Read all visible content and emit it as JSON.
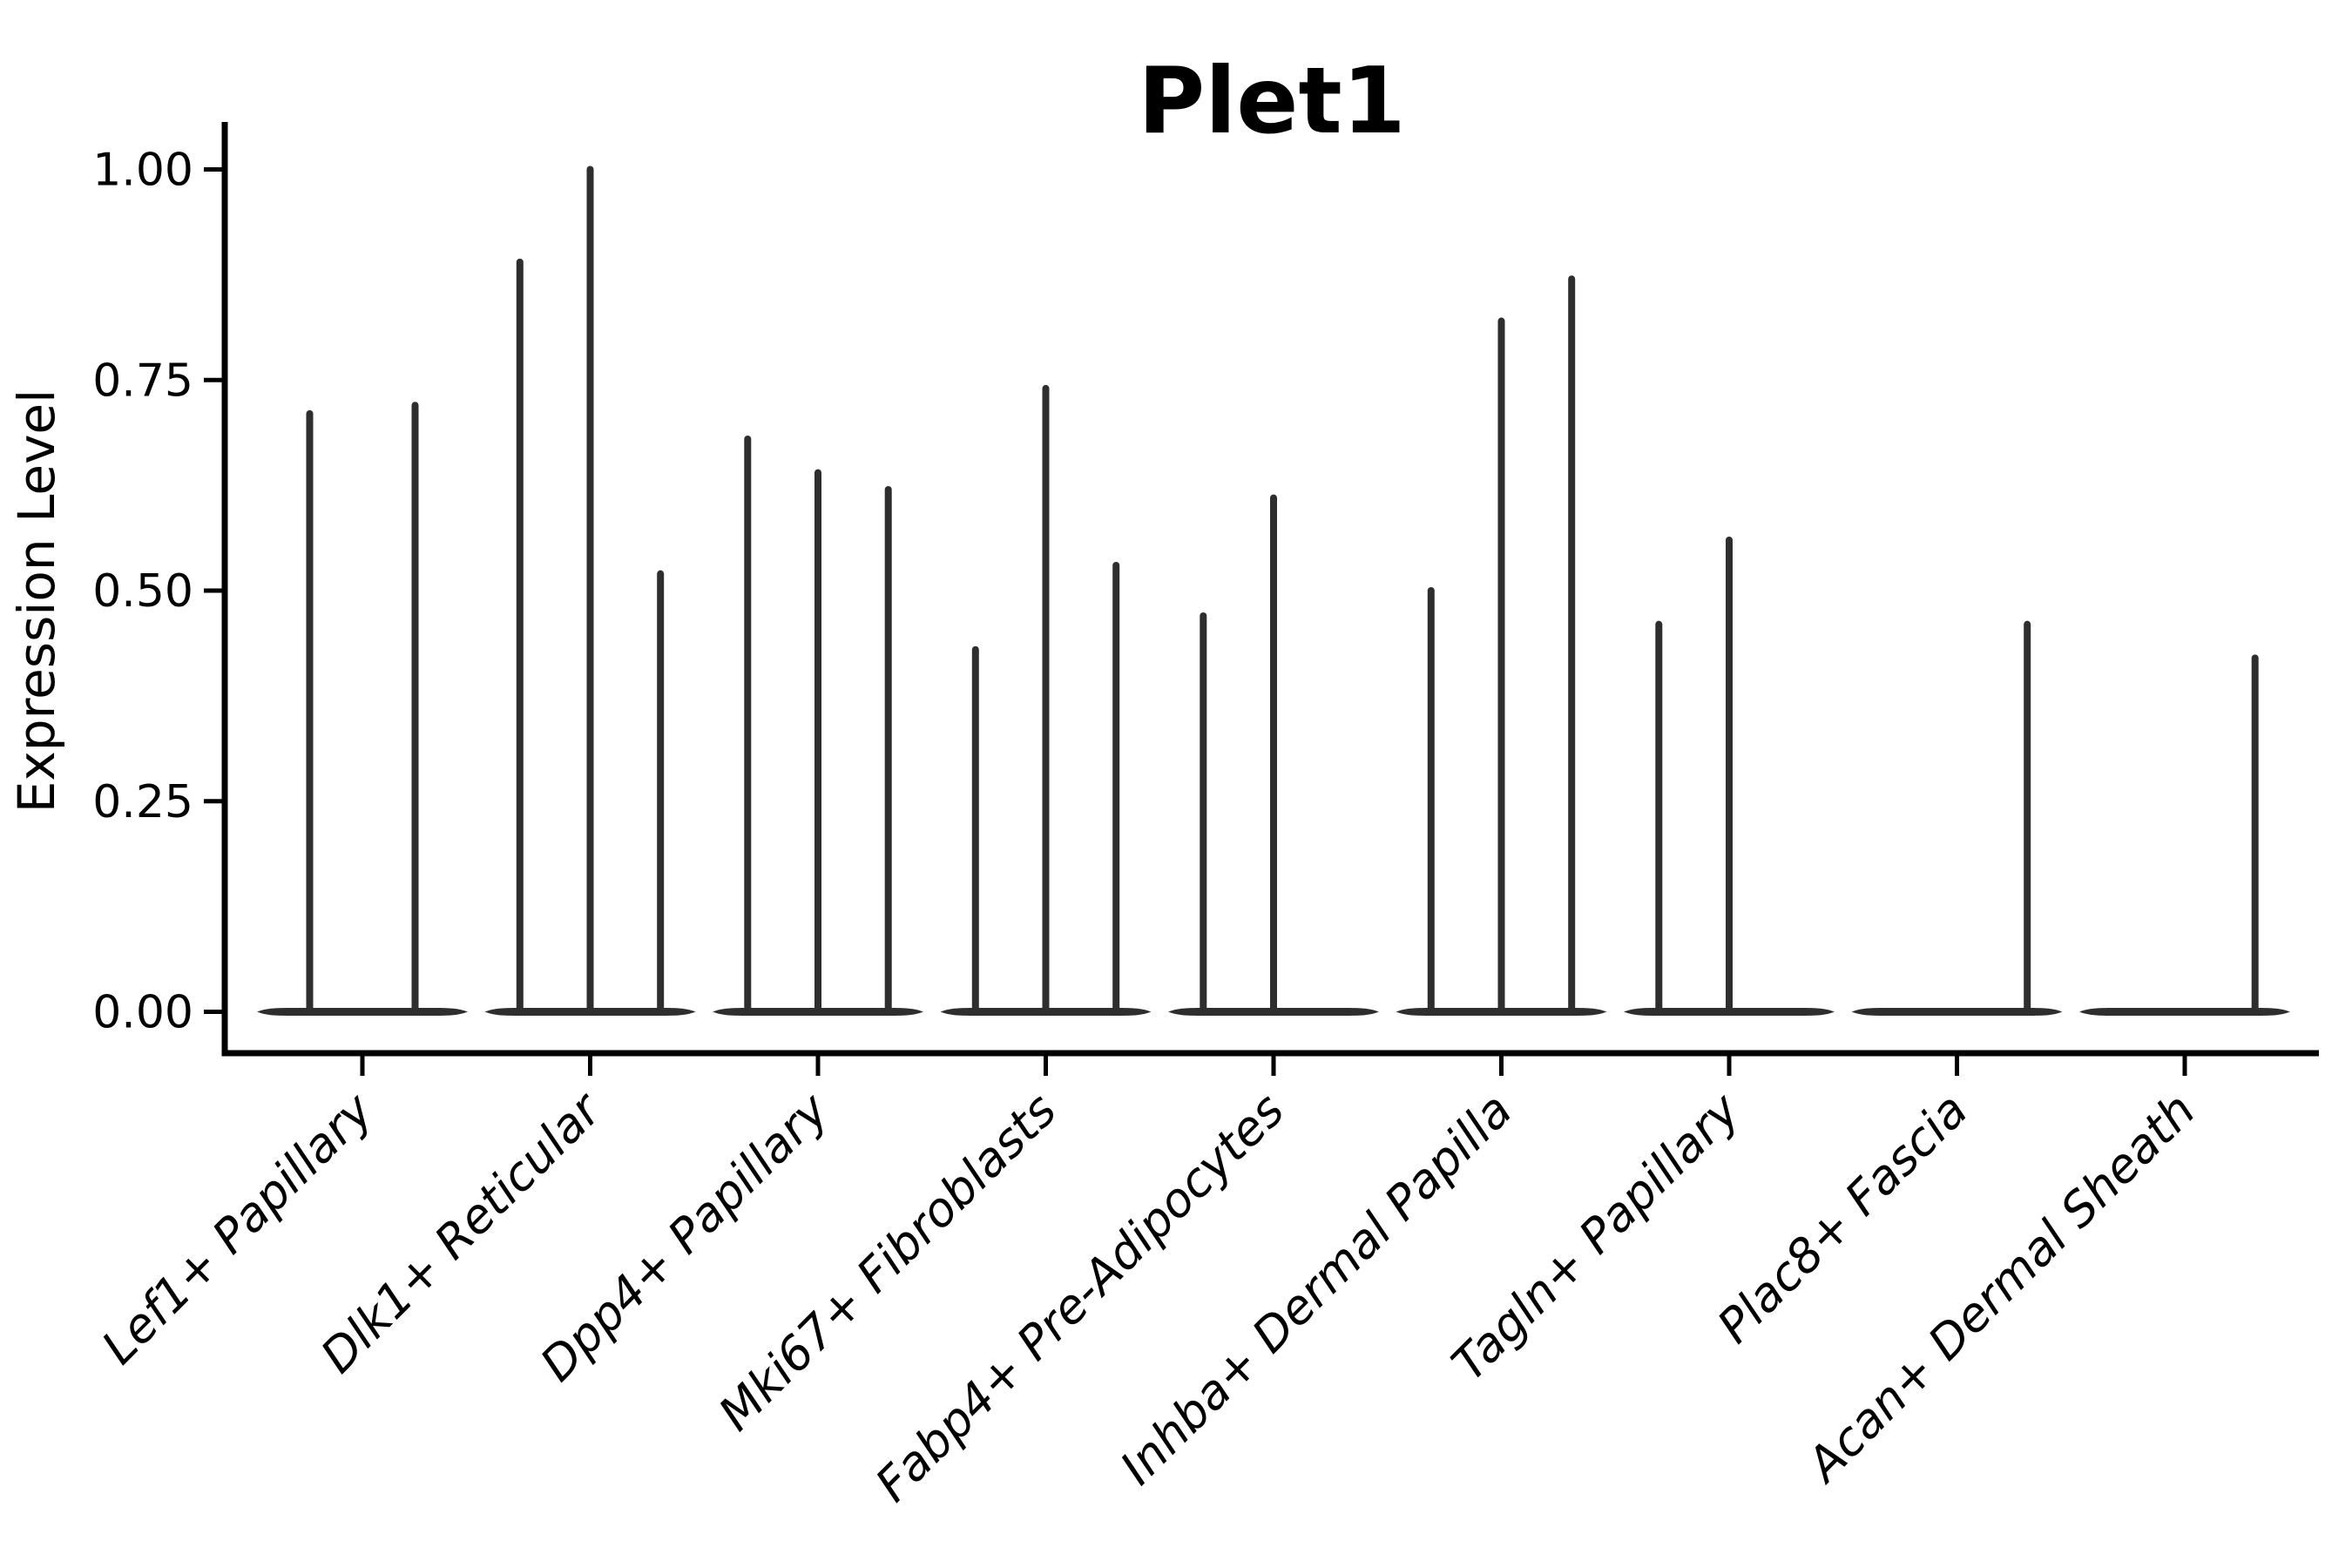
{
  "chart_data": {
    "type": "violin",
    "title": "Plet1",
    "ylabel": "Expression Level",
    "xlabel": "",
    "ylim": [
      0.0,
      1.05
    ],
    "ytick_values": [
      0.0,
      0.25,
      0.5,
      0.75,
      1.0
    ],
    "ytick_labels": [
      "0.00",
      "0.25",
      "0.50",
      "0.75",
      "1.00"
    ],
    "categories": [
      "Lef1+ Papillary",
      "Dlk1+ Reticular",
      "Dpp4+ Papillary",
      "Mki67+ Fibroblasts",
      "Fabp4+ Pre-Adipocytes",
      "Inhba+ Dermal Papilla",
      "Tagln+ Papillary",
      "Plac8+ Fascia",
      "Acan+ Dermal Sheath"
    ],
    "groups": [
      {
        "category": "Lef1+ Papillary",
        "violin_peaks": [
          0.71,
          0.72
        ]
      },
      {
        "category": "Dlk1+ Reticular",
        "violin_peaks": [
          0.89,
          1.0,
          0.52
        ]
      },
      {
        "category": "Dpp4+ Papillary",
        "violin_peaks": [
          0.68,
          0.64,
          0.62
        ]
      },
      {
        "category": "Mki67+ Fibroblasts",
        "violin_peaks": [
          0.43,
          0.74,
          0.53
        ]
      },
      {
        "category": "Fabp4+ Pre-Adipocytes",
        "violin_peaks": [
          0.47,
          0.61,
          0.0
        ]
      },
      {
        "category": "Inhba+ Dermal Papilla",
        "violin_peaks": [
          0.5,
          0.82,
          0.87
        ]
      },
      {
        "category": "Tagln+ Papillary",
        "violin_peaks": [
          0.46,
          0.56,
          0.0
        ]
      },
      {
        "category": "Plac8+ Fascia",
        "violin_peaks": [
          0.0,
          0.0,
          0.46
        ]
      },
      {
        "category": "Acan+ Dermal Sheath",
        "violin_peaks": [
          0.0,
          0.0,
          0.42
        ]
      }
    ],
    "style": {
      "violin_color": "#2e2e2e",
      "axis_color": "#000000",
      "background": "#ffffff",
      "x_tick_label_rotation_deg": 45,
      "x_tick_label_style": "italic",
      "grid": false,
      "legend": "none"
    }
  }
}
